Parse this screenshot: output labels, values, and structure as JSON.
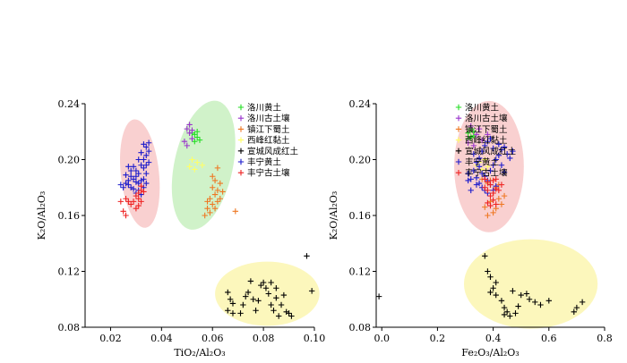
{
  "chart_data": [
    {
      "type": "scatter",
      "xlabel": "TiO₂/Al₂O₃",
      "ylabel": "K₂O/Al₂O₃",
      "xlim": [
        0.01,
        0.1
      ],
      "ylim": [
        0.08,
        0.24
      ],
      "x_ticks": [
        "0.02",
        "0.04",
        "0.06",
        "0.08",
        "0.10"
      ],
      "y_ticks": [
        "0.08",
        "0.12",
        "0.16",
        "0.20",
        "0.24"
      ],
      "legend_position": "top-right",
      "ellipses": [
        {
          "cx": 0.0315,
          "cy": 0.19,
          "rx": 0.0075,
          "ry": 0.039,
          "angle": -6,
          "color": "#f8c8c8"
        },
        {
          "cx": 0.0565,
          "cy": 0.196,
          "rx": 0.0115,
          "ry": 0.047,
          "angle": 12,
          "color": "#c8f0c0"
        },
        {
          "cx": 0.0815,
          "cy": 0.104,
          "rx": 0.0205,
          "ry": 0.023,
          "angle": 0,
          "color": "#fbf6b0"
        }
      ],
      "series": [
        {
          "name": "洛川黄土",
          "color": "#22dd22",
          "points": [
            [
              0.053,
              0.218
            ],
            [
              0.054,
              0.216
            ],
            [
              0.052,
              0.219
            ],
            [
              0.055,
              0.214
            ],
            [
              0.054,
              0.22
            ],
            [
              0.053,
              0.213
            ]
          ]
        },
        {
          "name": "洛川古土壤",
          "color": "#9933cc",
          "points": [
            [
              0.05,
              0.222
            ],
            [
              0.051,
              0.219
            ],
            [
              0.049,
              0.213
            ],
            [
              0.051,
              0.225
            ],
            [
              0.052,
              0.215
            ],
            [
              0.05,
              0.21
            ],
            [
              0.052,
              0.221
            ]
          ]
        },
        {
          "name": "镇江下蜀土",
          "color": "#ee7722",
          "points": [
            [
              0.062,
              0.194
            ],
            [
              0.061,
              0.185
            ],
            [
              0.063,
              0.183
            ],
            [
              0.062,
              0.178
            ],
            [
              0.06,
              0.18
            ],
            [
              0.061,
              0.175
            ],
            [
              0.064,
              0.177
            ],
            [
              0.059,
              0.172
            ],
            [
              0.058,
              0.17
            ],
            [
              0.06,
              0.168
            ],
            [
              0.061,
              0.165
            ],
            [
              0.062,
              0.17
            ],
            [
              0.058,
              0.165
            ],
            [
              0.057,
              0.16
            ],
            [
              0.059,
              0.162
            ],
            [
              0.063,
              0.172
            ],
            [
              0.06,
              0.188
            ],
            [
              0.069,
              0.163
            ]
          ]
        },
        {
          "name": "西峰红黏土",
          "color": "#ffff66",
          "points": [
            [
              0.054,
              0.198
            ],
            [
              0.052,
              0.2
            ],
            [
              0.056,
              0.196
            ],
            [
              0.051,
              0.195
            ],
            [
              0.053,
              0.193
            ]
          ]
        },
        {
          "name": "宣城风成红土",
          "color": "#000000",
          "points": [
            [
              0.066,
              0.105
            ],
            [
              0.067,
              0.1
            ],
            [
              0.068,
              0.097
            ],
            [
              0.066,
              0.092
            ],
            [
              0.068,
              0.09
            ],
            [
              0.071,
              0.09
            ],
            [
              0.072,
              0.096
            ],
            [
              0.073,
              0.102
            ],
            [
              0.074,
              0.105
            ],
            [
              0.076,
              0.1
            ],
            [
              0.077,
              0.092
            ],
            [
              0.078,
              0.099
            ],
            [
              0.079,
              0.11
            ],
            [
              0.08,
              0.112
            ],
            [
              0.081,
              0.108
            ],
            [
              0.082,
              0.104
            ],
            [
              0.083,
              0.096
            ],
            [
              0.084,
              0.092
            ],
            [
              0.085,
              0.101
            ],
            [
              0.086,
              0.088
            ],
            [
              0.087,
              0.096
            ],
            [
              0.088,
              0.103
            ],
            [
              0.089,
              0.091
            ],
            [
              0.09,
              0.09
            ],
            [
              0.091,
              0.088
            ],
            [
              0.085,
              0.108
            ],
            [
              0.083,
              0.112
            ],
            [
              0.075,
              0.113
            ],
            [
              0.097,
              0.131
            ],
            [
              0.099,
              0.106
            ]
          ]
        },
        {
          "name": "丰宁黄土",
          "color": "#1a1acc",
          "points": [
            [
              0.026,
              0.189
            ],
            [
              0.027,
              0.185
            ],
            [
              0.028,
              0.188
            ],
            [
              0.027,
              0.182
            ],
            [
              0.028,
              0.18
            ],
            [
              0.029,
              0.186
            ],
            [
              0.03,
              0.184
            ],
            [
              0.029,
              0.179
            ],
            [
              0.03,
              0.176
            ],
            [
              0.031,
              0.183
            ],
            [
              0.032,
              0.185
            ],
            [
              0.031,
              0.178
            ],
            [
              0.032,
              0.175
            ],
            [
              0.033,
              0.18
            ],
            [
              0.034,
              0.183
            ],
            [
              0.033,
              0.186
            ],
            [
              0.034,
              0.19
            ],
            [
              0.033,
              0.194
            ],
            [
              0.034,
              0.196
            ],
            [
              0.035,
              0.198
            ],
            [
              0.033,
              0.2
            ],
            [
              0.034,
              0.203
            ],
            [
              0.035,
              0.206
            ],
            [
              0.034,
              0.209
            ],
            [
              0.033,
              0.211
            ],
            [
              0.035,
              0.212
            ],
            [
              0.032,
              0.205
            ],
            [
              0.031,
              0.2
            ],
            [
              0.032,
              0.196
            ],
            [
              0.03,
              0.192
            ],
            [
              0.029,
              0.195
            ],
            [
              0.028,
              0.192
            ],
            [
              0.027,
              0.195
            ],
            [
              0.026,
              0.183
            ],
            [
              0.025,
              0.18
            ],
            [
              0.024,
              0.182
            ],
            [
              0.03,
              0.188
            ],
            [
              0.031,
              0.19
            ]
          ]
        },
        {
          "name": "丰宁古土壤",
          "color": "#ee2222",
          "points": [
            [
              0.031,
              0.176
            ],
            [
              0.032,
              0.178
            ],
            [
              0.03,
              0.174
            ],
            [
              0.031,
              0.172
            ],
            [
              0.032,
              0.17
            ],
            [
              0.031,
              0.167
            ],
            [
              0.03,
              0.165
            ],
            [
              0.029,
              0.17
            ],
            [
              0.028,
              0.168
            ],
            [
              0.027,
              0.17
            ],
            [
              0.026,
              0.172
            ],
            [
              0.025,
              0.163
            ],
            [
              0.026,
              0.16
            ],
            [
              0.024,
              0.17
            ],
            [
              0.033,
              0.177
            ],
            [
              0.032,
              0.181
            ]
          ]
        }
      ]
    },
    {
      "type": "scatter",
      "xlabel": "Fe₂O₃/Al₂O₃",
      "ylabel": "K₂O/Al₂O₃",
      "xlim": [
        -0.02,
        0.8
      ],
      "ylim": [
        0.08,
        0.24
      ],
      "x_ticks": [
        "0.0",
        "0.2",
        "0.4",
        "0.6",
        "0.8"
      ],
      "y_ticks": [
        "0.08",
        "0.12",
        "0.16",
        "0.20",
        "0.24"
      ],
      "legend_position": "top-right",
      "ellipses": [
        {
          "cx": 0.385,
          "cy": 0.195,
          "rx": 0.125,
          "ry": 0.047,
          "angle": 0,
          "color": "#f8c8c8"
        },
        {
          "cx": 0.535,
          "cy": 0.111,
          "rx": 0.24,
          "ry": 0.032,
          "angle": 0,
          "color": "#fbf6b0"
        }
      ],
      "series": [
        {
          "name": "洛川黄土",
          "color": "#22dd22",
          "points": [
            [
              0.31,
              0.219
            ],
            [
              0.32,
              0.216
            ],
            [
              0.33,
              0.22
            ],
            [
              0.32,
              0.222
            ],
            [
              0.31,
              0.215
            ],
            [
              0.33,
              0.217
            ]
          ]
        },
        {
          "name": "洛川古土壤",
          "color": "#9933cc",
          "points": [
            [
              0.31,
              0.212
            ],
            [
              0.33,
              0.21
            ],
            [
              0.35,
              0.222
            ],
            [
              0.34,
              0.218
            ],
            [
              0.32,
              0.224
            ],
            [
              0.36,
              0.214
            ],
            [
              0.38,
              0.218
            ]
          ]
        },
        {
          "name": "镇江下蜀土",
          "color": "#ee7722",
          "points": [
            [
              0.36,
              0.186
            ],
            [
              0.38,
              0.183
            ],
            [
              0.4,
              0.176
            ],
            [
              0.41,
              0.18
            ],
            [
              0.42,
              0.172
            ],
            [
              0.39,
              0.17
            ],
            [
              0.37,
              0.166
            ],
            [
              0.41,
              0.165
            ],
            [
              0.43,
              0.168
            ],
            [
              0.4,
              0.162
            ],
            [
              0.38,
              0.16
            ],
            [
              0.44,
              0.174
            ],
            [
              0.42,
              0.182
            ],
            [
              0.39,
              0.185
            ]
          ]
        },
        {
          "name": "西峰红黏土",
          "color": "#ffff66",
          "points": [
            [
              0.35,
              0.198
            ],
            [
              0.37,
              0.2
            ],
            [
              0.34,
              0.196
            ],
            [
              0.38,
              0.195
            ],
            [
              0.36,
              0.193
            ]
          ]
        },
        {
          "name": "宣城风成红土",
          "color": "#000000",
          "points": [
            [
              -0.01,
              0.102
            ],
            [
              0.37,
              0.131
            ],
            [
              0.38,
              0.12
            ],
            [
              0.39,
              0.116
            ],
            [
              0.4,
              0.108
            ],
            [
              0.39,
              0.105
            ],
            [
              0.41,
              0.103
            ],
            [
              0.43,
              0.099
            ],
            [
              0.44,
              0.094
            ],
            [
              0.44,
              0.089
            ],
            [
              0.45,
              0.091
            ],
            [
              0.46,
              0.088
            ],
            [
              0.48,
              0.09
            ],
            [
              0.49,
              0.095
            ],
            [
              0.5,
              0.103
            ],
            [
              0.52,
              0.104
            ],
            [
              0.53,
              0.1
            ],
            [
              0.55,
              0.098
            ],
            [
              0.57,
              0.096
            ],
            [
              0.6,
              0.099
            ],
            [
              0.69,
              0.091
            ],
            [
              0.7,
              0.094
            ],
            [
              0.72,
              0.098
            ],
            [
              0.47,
              0.106
            ],
            [
              0.41,
              0.112
            ]
          ]
        },
        {
          "name": "丰宁黄土",
          "color": "#1a1acc",
          "points": [
            [
              0.31,
              0.19
            ],
            [
              0.32,
              0.186
            ],
            [
              0.33,
              0.192
            ],
            [
              0.34,
              0.187
            ],
            [
              0.35,
              0.183
            ],
            [
              0.36,
              0.19
            ],
            [
              0.37,
              0.188
            ],
            [
              0.38,
              0.185
            ],
            [
              0.39,
              0.182
            ],
            [
              0.36,
              0.18
            ],
            [
              0.37,
              0.178
            ],
            [
              0.38,
              0.176
            ],
            [
              0.4,
              0.178
            ],
            [
              0.41,
              0.181
            ],
            [
              0.39,
              0.192
            ],
            [
              0.4,
              0.196
            ],
            [
              0.41,
              0.2
            ],
            [
              0.42,
              0.203
            ],
            [
              0.43,
              0.207
            ],
            [
              0.42,
              0.211
            ],
            [
              0.44,
              0.209
            ],
            [
              0.45,
              0.204
            ],
            [
              0.46,
              0.201
            ],
            [
              0.47,
              0.206
            ],
            [
              0.43,
              0.196
            ],
            [
              0.44,
              0.191
            ],
            [
              0.35,
              0.195
            ],
            [
              0.34,
              0.198
            ],
            [
              0.33,
              0.204
            ],
            [
              0.36,
              0.206
            ],
            [
              0.37,
              0.21
            ],
            [
              0.38,
              0.213
            ],
            [
              0.39,
              0.215
            ],
            [
              0.4,
              0.208
            ],
            [
              0.35,
              0.201
            ],
            [
              0.32,
              0.178
            ],
            [
              0.34,
              0.182
            ],
            [
              0.31,
              0.185
            ]
          ]
        },
        {
          "name": "丰宁古土壤",
          "color": "#ee2222",
          "points": [
            [
              0.37,
              0.18
            ],
            [
              0.38,
              0.178
            ],
            [
              0.39,
              0.182
            ],
            [
              0.4,
              0.176
            ],
            [
              0.41,
              0.179
            ],
            [
              0.39,
              0.174
            ],
            [
              0.4,
              0.171
            ],
            [
              0.38,
              0.169
            ],
            [
              0.39,
              0.167
            ],
            [
              0.41,
              0.168
            ],
            [
              0.42,
              0.178
            ],
            [
              0.43,
              0.182
            ],
            [
              0.4,
              0.185
            ],
            [
              0.38,
              0.184
            ],
            [
              0.37,
              0.186
            ],
            [
              0.41,
              0.186
            ]
          ]
        }
      ]
    }
  ]
}
